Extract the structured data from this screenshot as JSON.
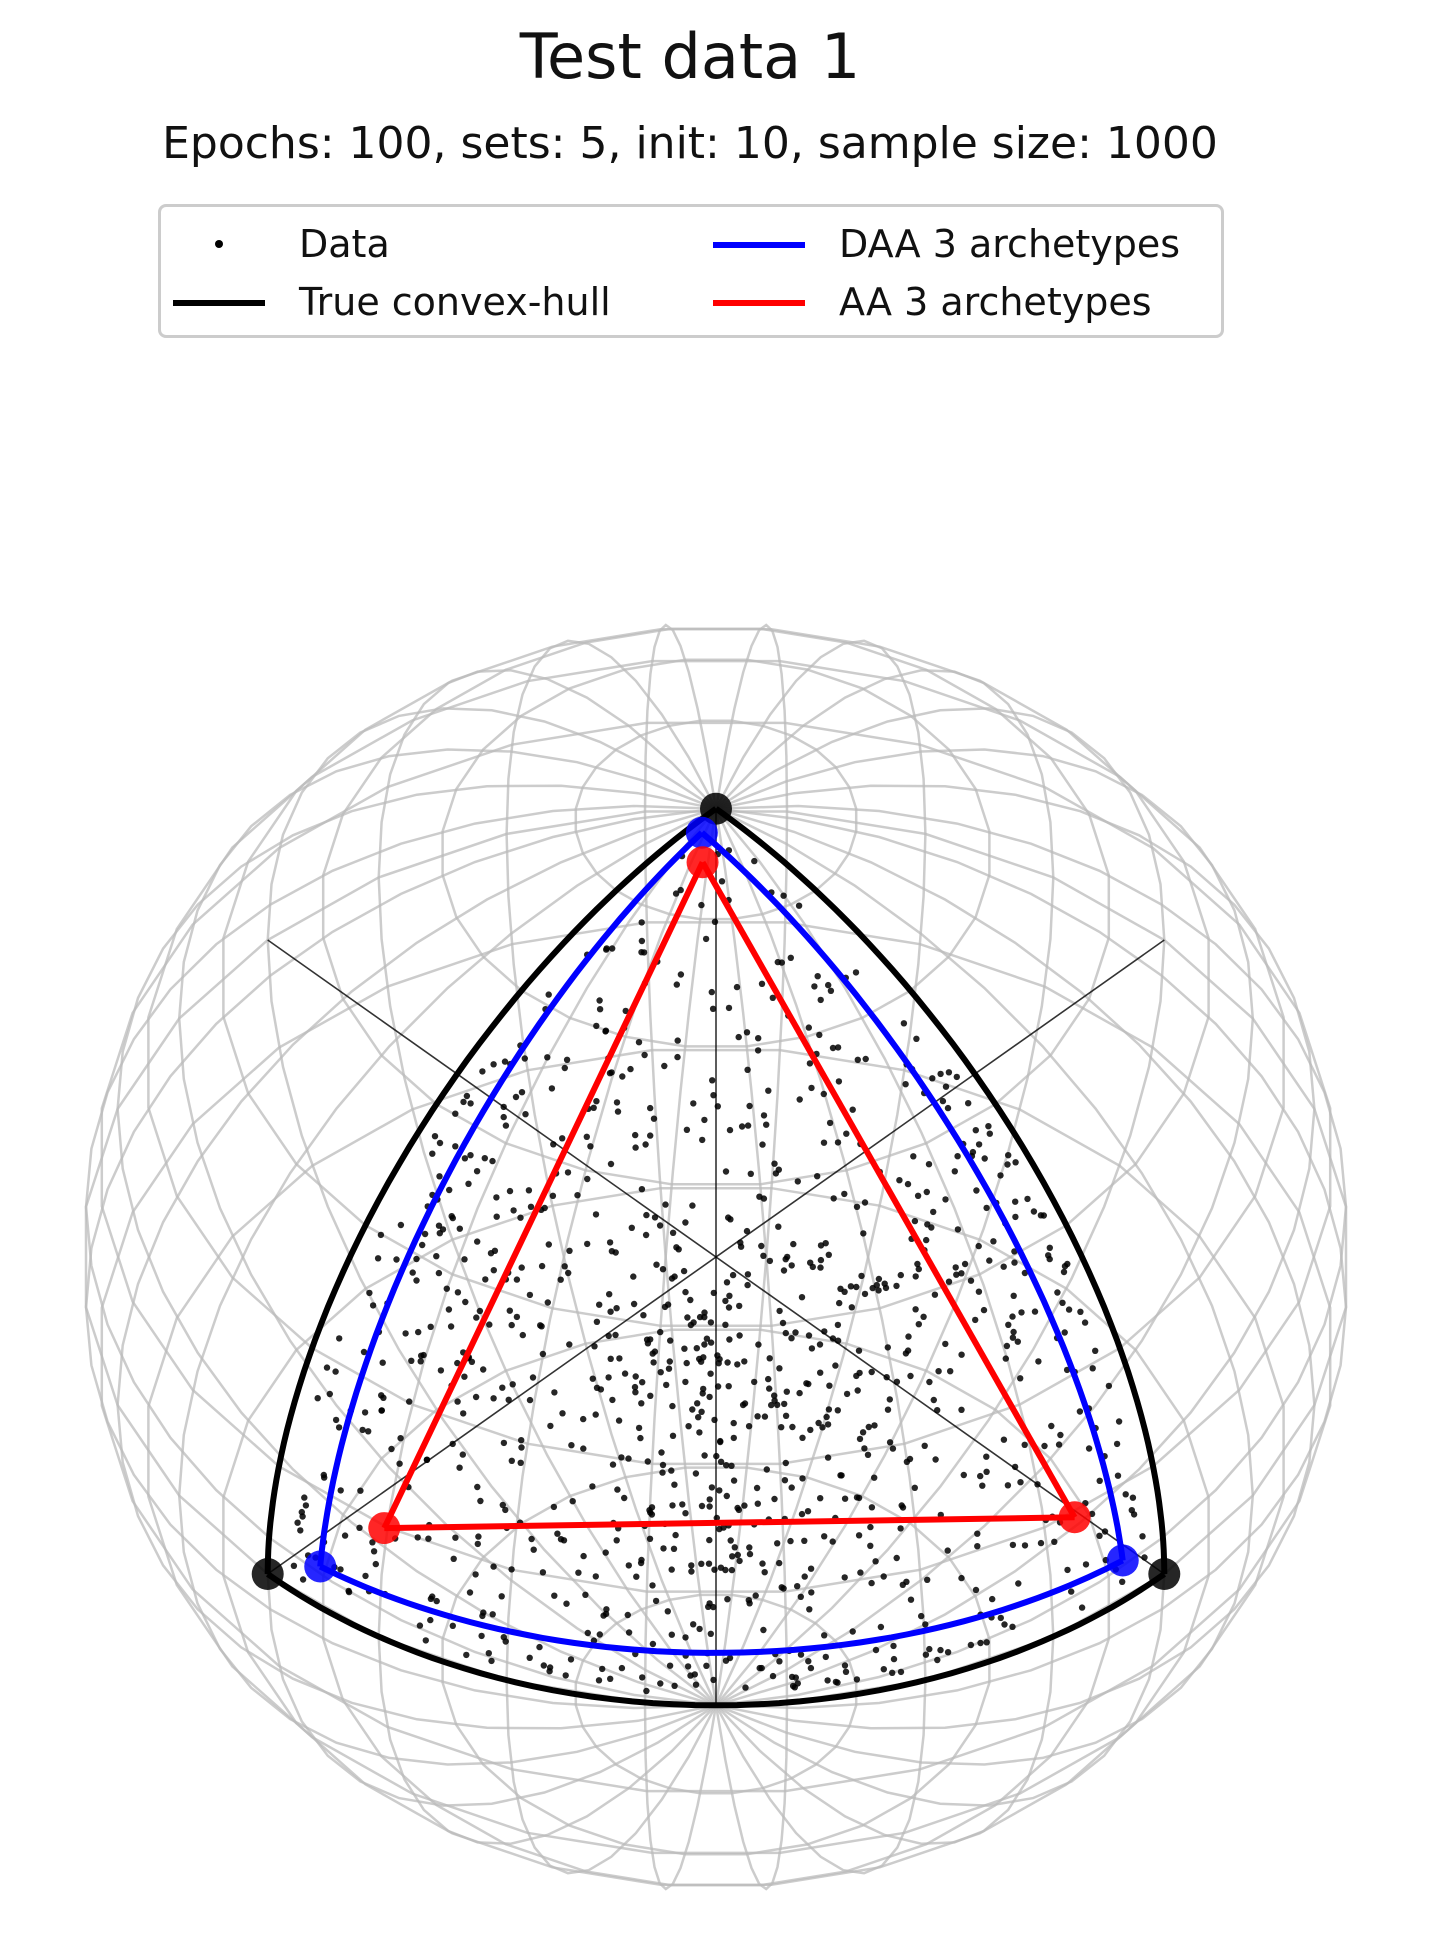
{
  "chart_data": {
    "type": "scatter",
    "title": "Test data 1",
    "subtitle": "Epochs: 100, sets: 5, init: 10, sample size: 1000",
    "projection": "3d unit sphere (wireframe)",
    "legend_position": "top-center",
    "grid": false,
    "colors": {
      "data": "#000000",
      "true_hull": "#000000",
      "daa": "#0000ff",
      "aa": "#ff0000",
      "sphere_wire": "#bbbbbb"
    },
    "series": [
      {
        "name": "Data",
        "kind": "points",
        "count": 1000
      },
      {
        "name": "True convex-hull",
        "kind": "spherical-triangle",
        "vertices": [
          [
            0,
            0,
            1
          ],
          [
            1,
            0,
            0
          ],
          [
            0,
            1,
            0
          ]
        ]
      },
      {
        "name": "DAA 3 archetypes",
        "kind": "spherical-triangle",
        "vertices": [
          [
            0.02,
            0.05,
            0.95
          ],
          [
            0.93,
            0.08,
            0.08
          ],
          [
            0.1,
            0.92,
            0.08
          ]
        ]
      },
      {
        "name": "AA 3 archetypes",
        "kind": "linear-triangle",
        "vertices": [
          [
            0.02,
            0.05,
            0.93
          ],
          [
            0.86,
            0.06,
            0.07
          ],
          [
            0.1,
            0.84,
            0.06
          ]
        ]
      }
    ]
  },
  "legend": {
    "items": [
      {
        "label": "Data"
      },
      {
        "label": "True convex-hull"
      },
      {
        "label": "DAA 3 archetypes"
      },
      {
        "label": "AA 3 archetypes"
      }
    ]
  }
}
